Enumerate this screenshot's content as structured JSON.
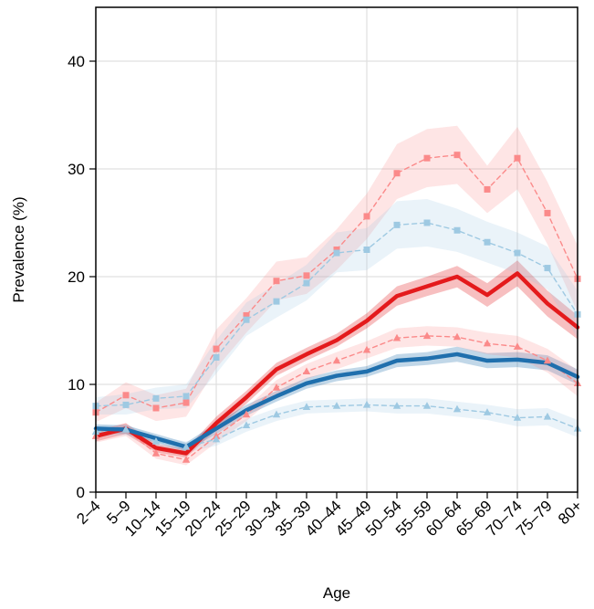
{
  "chart_data": {
    "type": "line",
    "title": "",
    "xlabel": "Age",
    "ylabel": "Prevalence (%)",
    "ylim": [
      0,
      45
    ],
    "yticks": [
      0,
      10,
      20,
      30,
      40
    ],
    "grid": true,
    "legend": "none",
    "categories": [
      "2–4",
      "5–9",
      "10–14",
      "15–19",
      "20–24",
      "25–29",
      "30–34",
      "35–39",
      "40–44",
      "45–49",
      "50–54",
      "55–59",
      "60–64",
      "65–69",
      "70–74",
      "75–79",
      "80+"
    ],
    "series": [
      {
        "color": "#e41a1c",
        "line": "solid",
        "marker": "none",
        "values": [
          5.2,
          5.9,
          4.1,
          3.6,
          6.4,
          8.8,
          11.4,
          12.8,
          14.1,
          15.9,
          18.2,
          19.1,
          20.0,
          18.3,
          20.3,
          17.5,
          15.3
        ],
        "ci_lower": [
          4.7,
          5.4,
          3.7,
          3.2,
          5.8,
          8.2,
          10.8,
          12.2,
          13.5,
          15.2,
          17.3,
          18.2,
          19.0,
          17.2,
          19.1,
          16.3,
          14.2
        ],
        "ci_upper": [
          5.7,
          6.4,
          4.5,
          4.0,
          7.0,
          9.4,
          12.0,
          13.4,
          14.7,
          16.6,
          19.1,
          20.0,
          21.0,
          19.4,
          21.5,
          18.7,
          16.4
        ]
      },
      {
        "color": "#1f6fad",
        "line": "solid",
        "marker": "none",
        "values": [
          5.9,
          5.8,
          5.0,
          4.2,
          5.9,
          7.6,
          8.9,
          10.1,
          10.8,
          11.2,
          12.2,
          12.4,
          12.8,
          12.2,
          12.3,
          12.0,
          10.7
        ],
        "ci_lower": [
          5.5,
          5.4,
          4.6,
          3.8,
          5.4,
          7.1,
          8.4,
          9.6,
          10.3,
          10.7,
          11.6,
          11.8,
          12.1,
          11.5,
          11.6,
          11.3,
          10.0
        ],
        "ci_upper": [
          6.3,
          6.2,
          5.4,
          4.6,
          6.4,
          8.1,
          9.4,
          10.6,
          11.3,
          11.7,
          12.8,
          13.0,
          13.5,
          12.9,
          13.0,
          12.7,
          11.4
        ]
      },
      {
        "color": "#fb8a8a",
        "line": "dashed",
        "marker": "square",
        "values": [
          7.4,
          9.0,
          7.8,
          8.3,
          13.3,
          16.4,
          19.6,
          20.1,
          22.5,
          25.6,
          29.6,
          31.0,
          31.3,
          28.1,
          31.0,
          25.9,
          19.8
        ],
        "ci_lower": [
          6.5,
          7.8,
          6.6,
          7.0,
          11.5,
          14.8,
          17.8,
          18.4,
          20.6,
          23.5,
          27.2,
          28.3,
          28.6,
          25.9,
          28.1,
          23.0,
          16.7
        ],
        "ci_upper": [
          8.3,
          10.2,
          9.0,
          9.6,
          15.1,
          18.0,
          21.4,
          21.8,
          24.4,
          27.7,
          32.3,
          33.7,
          34.0,
          30.3,
          33.9,
          28.8,
          22.9
        ]
      },
      {
        "color": "#9ec9e2",
        "line": "dashed",
        "marker": "square",
        "values": [
          8.0,
          8.1,
          8.7,
          8.9,
          12.5,
          16.0,
          17.7,
          19.4,
          22.2,
          22.5,
          24.8,
          25.0,
          24.3,
          23.2,
          22.2,
          20.8,
          16.5
        ],
        "ci_lower": [
          7.2,
          7.2,
          7.7,
          7.8,
          11.0,
          14.5,
          16.2,
          17.8,
          20.4,
          20.6,
          22.6,
          22.8,
          22.3,
          21.3,
          20.3,
          18.8,
          14.3
        ],
        "ci_upper": [
          8.8,
          9.1,
          9.7,
          10.0,
          14.1,
          17.6,
          19.3,
          21.1,
          24.1,
          24.5,
          27.0,
          27.2,
          26.3,
          25.1,
          24.1,
          22.8,
          18.7
        ]
      },
      {
        "color": "#fb8a8a",
        "line": "dashed",
        "marker": "triangle",
        "values": [
          5.2,
          5.8,
          3.6,
          3.0,
          5.2,
          7.2,
          9.7,
          11.2,
          12.2,
          13.2,
          14.3,
          14.5,
          14.4,
          13.8,
          13.5,
          12.2,
          10.1
        ],
        "ci_lower": [
          4.6,
          5.2,
          3.1,
          2.5,
          4.6,
          6.6,
          9.0,
          10.5,
          11.4,
          12.4,
          13.4,
          13.6,
          13.5,
          12.8,
          12.5,
          11.1,
          8.9
        ],
        "ci_upper": [
          5.8,
          6.4,
          4.1,
          3.5,
          5.8,
          7.8,
          10.4,
          11.9,
          13.0,
          14.0,
          15.2,
          15.4,
          15.3,
          14.8,
          14.5,
          13.3,
          11.3
        ]
      },
      {
        "color": "#9ec9e2",
        "line": "dashed",
        "marker": "triangle",
        "values": [
          5.6,
          5.8,
          4.7,
          4.2,
          4.9,
          6.2,
          7.2,
          7.9,
          8.0,
          8.1,
          8.0,
          8.0,
          7.7,
          7.4,
          6.9,
          7.0,
          5.9
        ],
        "ci_lower": [
          5.1,
          5.3,
          4.2,
          3.7,
          4.3,
          5.6,
          6.6,
          7.3,
          7.4,
          7.5,
          7.3,
          7.3,
          7.0,
          6.7,
          6.1,
          6.2,
          5.1
        ],
        "ci_upper": [
          6.1,
          6.3,
          5.2,
          4.7,
          5.5,
          6.8,
          7.8,
          8.5,
          8.6,
          8.7,
          8.7,
          8.7,
          8.4,
          8.1,
          7.7,
          7.8,
          6.7
        ]
      }
    ]
  }
}
